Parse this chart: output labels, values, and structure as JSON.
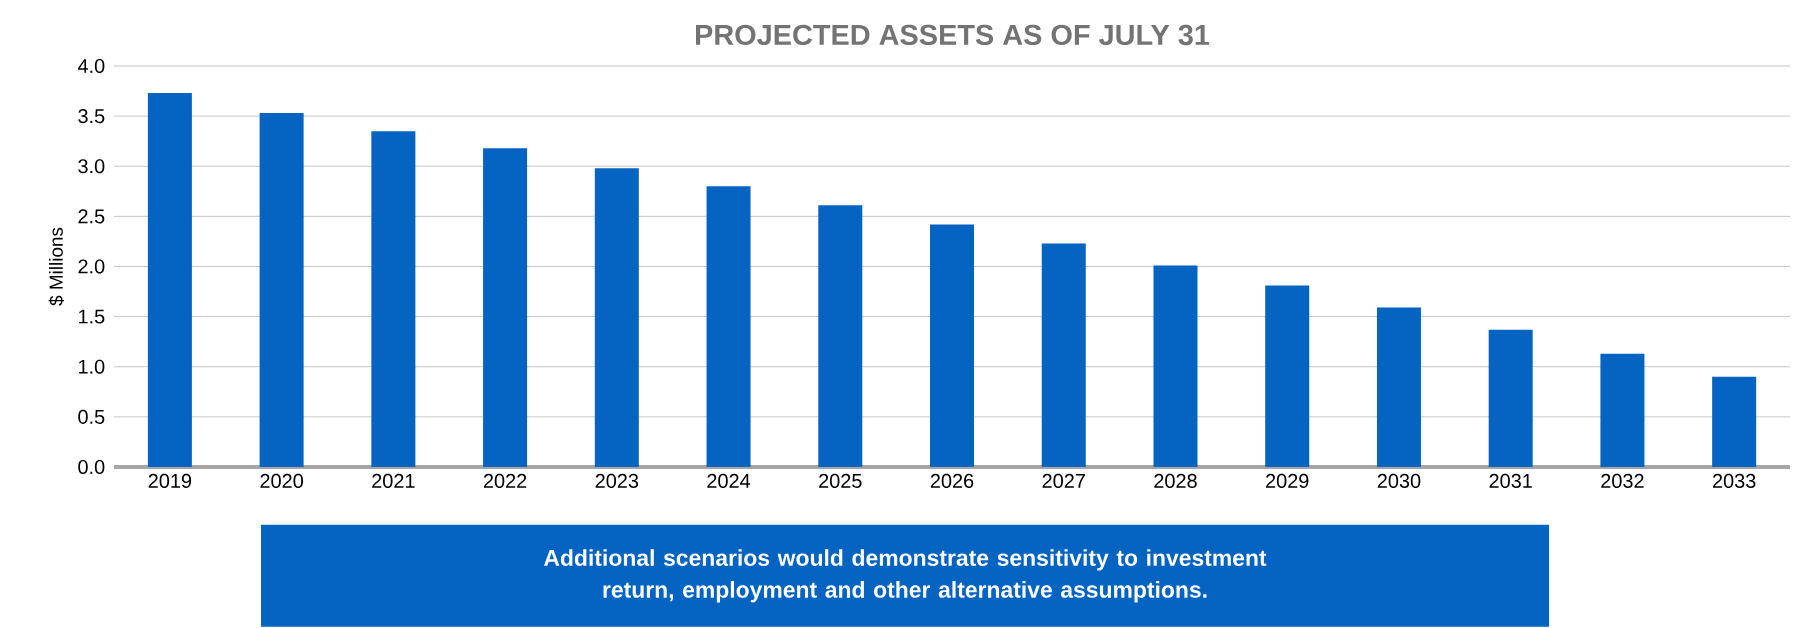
{
  "chart_data": {
    "type": "bar",
    "title": "PROJECTED ASSETS AS OF JULY 31",
    "ylabel": "$ Millions",
    "categories": [
      "2019",
      "2020",
      "2021",
      "2022",
      "2023",
      "2024",
      "2025",
      "2026",
      "2027",
      "2028",
      "2029",
      "2030",
      "2031",
      "2032",
      "2033"
    ],
    "values": [
      3.73,
      3.53,
      3.35,
      3.18,
      2.98,
      2.8,
      2.61,
      2.42,
      2.23,
      2.01,
      1.81,
      1.59,
      1.37,
      1.13,
      0.9
    ],
    "color": "#0563c1",
    "ylim": [
      0,
      4
    ],
    "yticks": [
      {
        "value": 0,
        "label": "0.0"
      },
      {
        "value": 0.5,
        "label": "0.5"
      },
      {
        "value": 1,
        "label": "1.0"
      },
      {
        "value": 1.5,
        "label": "1.5"
      },
      {
        "value": 2,
        "label": "2.0"
      },
      {
        "value": 2.5,
        "label": "2.5"
      },
      {
        "value": 3,
        "label": "3.0"
      },
      {
        "value": 3.5,
        "label": "3.5"
      },
      {
        "value": 4,
        "label": "4.0"
      }
    ],
    "grid": "y",
    "annotations": [
      "Additional scenarios would demonstrate sensitivity to investment return, employment and other alternative assumptions."
    ]
  }
}
